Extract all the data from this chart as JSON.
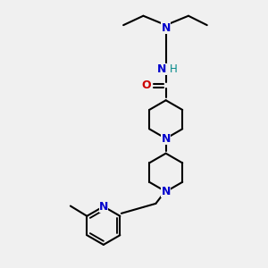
{
  "bg_color": "#f0f0f0",
  "bond_color": "#000000",
  "N_color": "#0000cc",
  "O_color": "#cc0000",
  "NH_color": "#008888",
  "line_width": 1.5,
  "fig_size": [
    3.0,
    3.0
  ],
  "dpi": 100,
  "xlim": [
    0,
    10
  ],
  "ylim": [
    0,
    10
  ]
}
